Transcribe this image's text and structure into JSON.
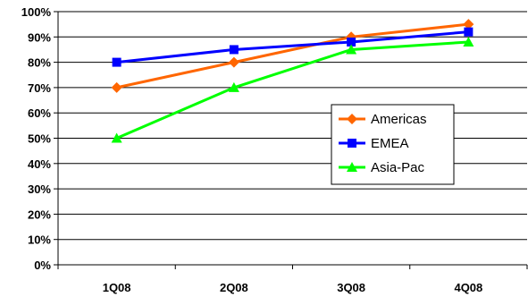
{
  "chart_data": {
    "type": "line",
    "title": "",
    "xlabel": "",
    "ylabel": "",
    "categories": [
      "1Q08",
      "2Q08",
      "3Q08",
      "4Q08"
    ],
    "ylim": [
      0,
      100
    ],
    "y_ticks": [
      "0%",
      "10%",
      "20%",
      "30%",
      "40%",
      "50%",
      "60%",
      "70%",
      "80%",
      "90%",
      "100%"
    ],
    "grid": true,
    "legend_position": "right",
    "series": [
      {
        "name": "Americas",
        "values": [
          70,
          80,
          90,
          95
        ],
        "color": "#FF6600",
        "marker": "diamond"
      },
      {
        "name": "EMEA",
        "values": [
          80,
          85,
          88,
          92
        ],
        "color": "#0000FF",
        "marker": "square"
      },
      {
        "name": "Asia-Pac",
        "values": [
          50,
          70,
          85,
          88
        ],
        "color": "#00FF00",
        "marker": "triangle"
      }
    ]
  }
}
